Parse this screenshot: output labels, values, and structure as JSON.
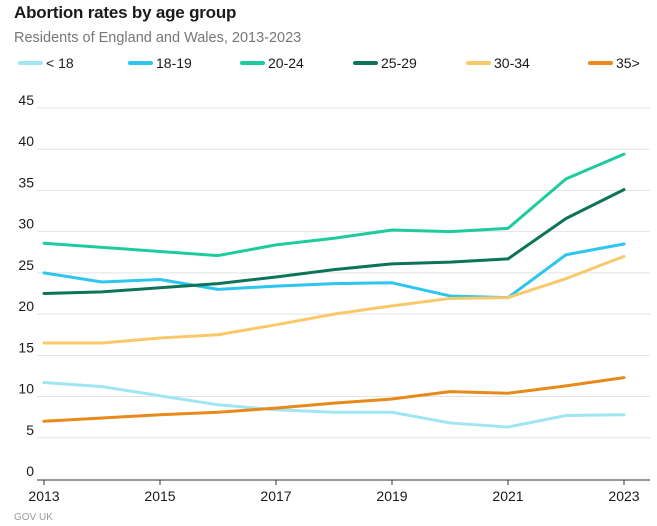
{
  "header": {
    "title": "Abortion rates by age group",
    "subtitle": "Residents of England and Wales, 2013-2023"
  },
  "footer": {
    "source": "GOV UK"
  },
  "chart_data": {
    "type": "line",
    "title": "Abortion rates by age group",
    "subtitle": "Residents of England and Wales, 2013-2023",
    "xlabel": "",
    "ylabel": "",
    "x": [
      2013,
      2014,
      2015,
      2016,
      2017,
      2018,
      2019,
      2020,
      2021,
      2022,
      2023
    ],
    "x_tick_labels": [
      "2013",
      "2015",
      "2017",
      "2019",
      "2021",
      "2023"
    ],
    "y_tick_labels": [
      "0",
      "5",
      "10",
      "15",
      "20",
      "25",
      "30",
      "35",
      "40",
      "45"
    ],
    "ylim": [
      0,
      45
    ],
    "xlim": [
      2013,
      2023
    ],
    "grid": true,
    "legend_position": "top",
    "series": [
      {
        "name": "< 18",
        "color": "#9fe6f2",
        "values": [
          11.7,
          11.2,
          10.1,
          9.0,
          8.4,
          8.1,
          8.1,
          6.8,
          6.3,
          7.7,
          7.8
        ]
      },
      {
        "name": "18-19",
        "color": "#2ec5ee",
        "values": [
          25.0,
          23.9,
          24.2,
          23.0,
          23.4,
          23.7,
          23.8,
          22.2,
          22.0,
          27.2,
          28.5
        ]
      },
      {
        "name": "20-24",
        "color": "#1ecb9f",
        "values": [
          28.6,
          28.1,
          27.6,
          27.1,
          28.4,
          29.2,
          30.2,
          30.0,
          30.4,
          36.4,
          39.4
        ]
      },
      {
        "name": "25-29",
        "color": "#0e7459",
        "values": [
          22.5,
          22.7,
          23.2,
          23.7,
          24.5,
          25.4,
          26.1,
          26.3,
          26.7,
          31.6,
          35.1
        ]
      },
      {
        "name": "30-34",
        "color": "#f7c96b",
        "values": [
          16.5,
          16.5,
          17.1,
          17.5,
          18.7,
          20.0,
          21.0,
          21.9,
          22.0,
          24.3,
          27.0
        ]
      },
      {
        "name": "35>",
        "color": "#e8891a",
        "values": [
          7.0,
          7.4,
          7.8,
          8.1,
          8.6,
          9.2,
          9.7,
          10.6,
          10.4,
          11.3,
          12.3
        ]
      }
    ]
  }
}
